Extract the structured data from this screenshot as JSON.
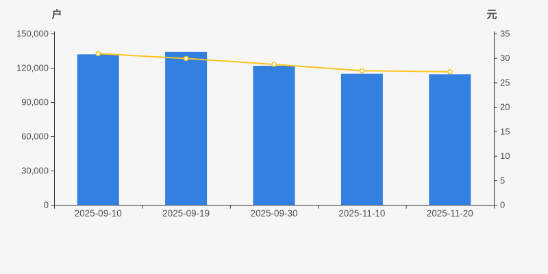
{
  "page": {
    "background": "#f6f6f6"
  },
  "chart_data": {
    "type": "bar",
    "subtype": "bar-line-dual-axis",
    "title": "",
    "legend": "none",
    "grid": false,
    "categories": [
      "2025-09-10",
      "2025-09-19",
      "2025-09-30",
      "2025-11-10",
      "2025-11-20"
    ],
    "series": [
      {
        "id": "bar_series",
        "type": "bar",
        "axis": "left",
        "unit": "户",
        "color": "#3380e1",
        "values": [
          131800,
          133900,
          121800,
          114800,
          114400
        ]
      },
      {
        "id": "line_series",
        "type": "line",
        "axis": "right",
        "unit": "元",
        "color": "#fcc31e",
        "marker_fill": "#ffffff",
        "values": [
          30.9,
          29.9,
          28.7,
          27.4,
          27.2
        ]
      }
    ],
    "left_axis": {
      "name": "户",
      "min": 0,
      "max": 150000,
      "step": 30000,
      "tick_labels": [
        "0",
        "30,000",
        "60,000",
        "90,000",
        "120,000",
        "150,000"
      ]
    },
    "right_axis": {
      "name": "元",
      "min": 0,
      "max": 35,
      "step": 5,
      "tick_labels": [
        "0",
        "5",
        "10",
        "15",
        "20",
        "25",
        "30",
        "35"
      ]
    },
    "x_axis": {
      "tick_labels": [
        "2025-09-10",
        "2025-09-19",
        "2025-09-30",
        "2025-11-10",
        "2025-11-20"
      ]
    },
    "styles": {
      "axis_line_color": "#333333",
      "tick_label_color": "#4d4d4d",
      "axis_name_color": "#444444"
    }
  }
}
